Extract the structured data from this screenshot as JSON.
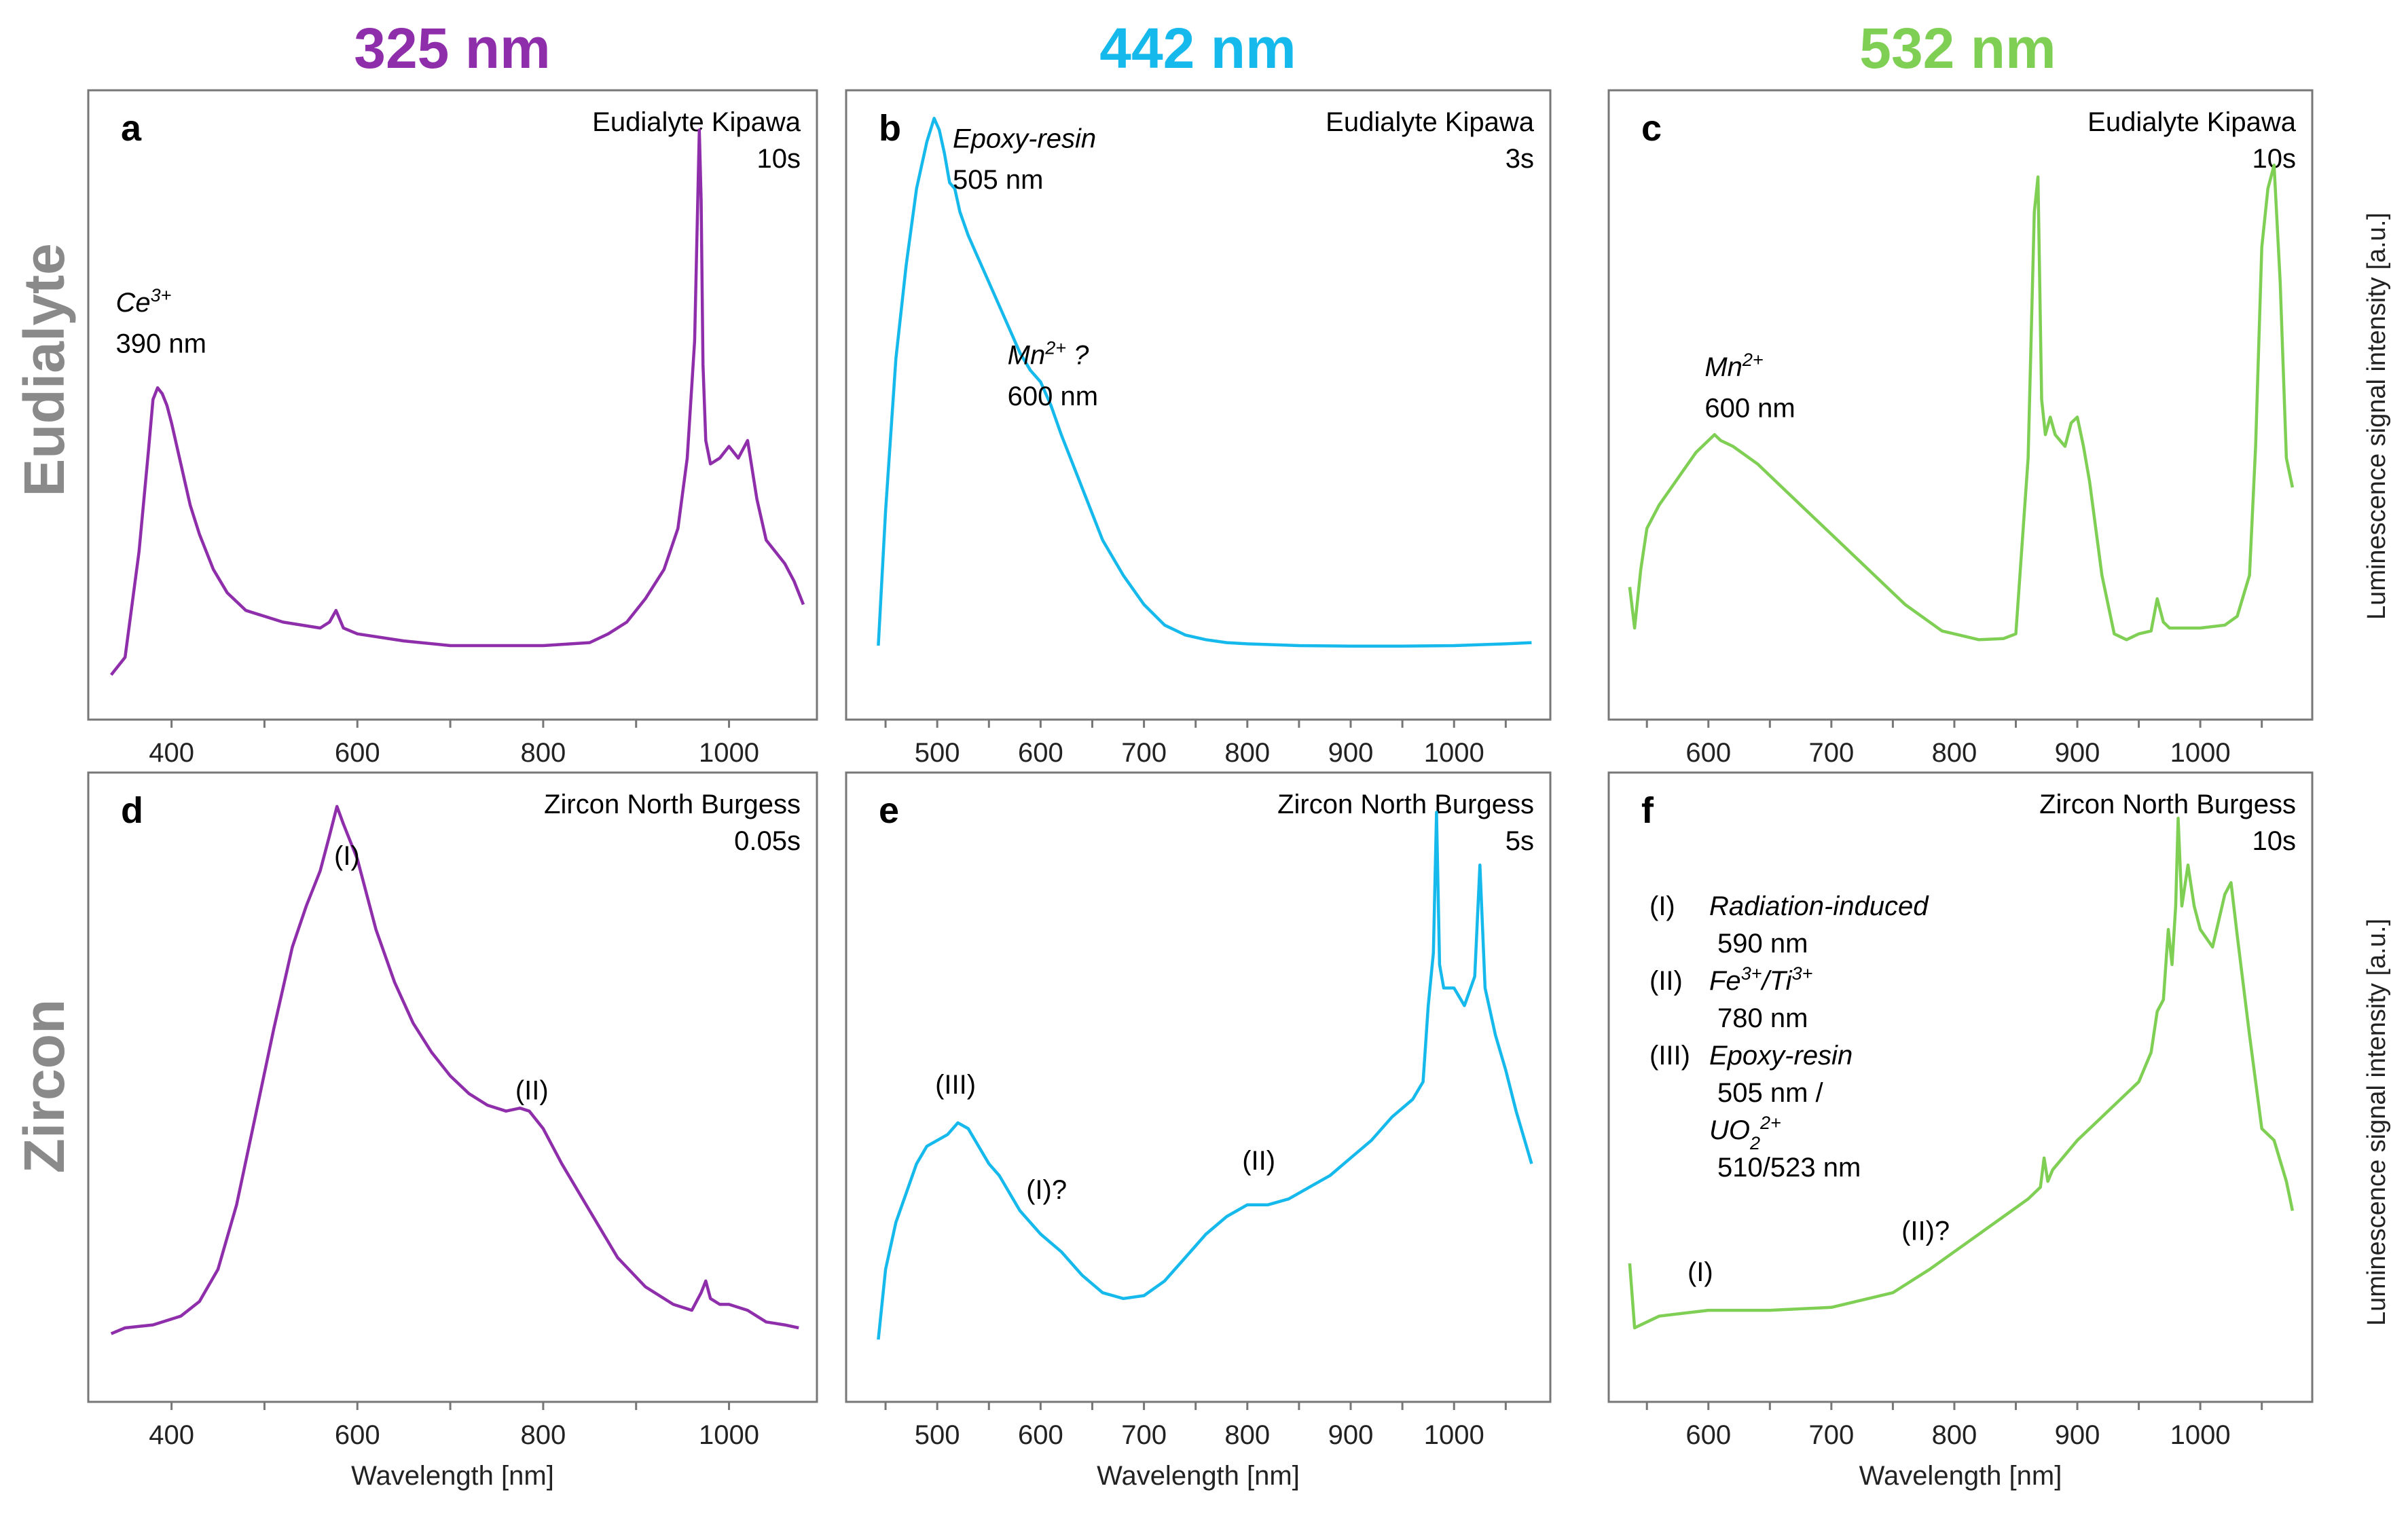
{
  "columns": [
    {
      "title": "325 nm",
      "color": "#8e2eaa"
    },
    {
      "title": "442 nm",
      "color": "#16b9eb"
    },
    {
      "title": "532 nm",
      "color": "#7fcf55"
    }
  ],
  "rows": [
    {
      "label": "Eudialyte",
      "ylabel": "Luminescence signal intensity [a.u.]"
    },
    {
      "label": "Zircon",
      "ylabel": "Luminescence signal intensity [a.u.]"
    }
  ],
  "chart_data": [
    {
      "type": "line",
      "panel": "a",
      "sample": "Eudialyte Kipawa",
      "exposure": "10s",
      "xlabel": "Wavelength [nm]",
      "xlim": [
        325,
        1080
      ],
      "ylim": [
        0,
        100
      ],
      "xticks": [
        "400",
        "600",
        "800",
        "1000"
      ],
      "annotations": [
        {
          "text": "Ce",
          "sup": "3+",
          "italic": true,
          "x": 340,
          "y": 65
        },
        {
          "text": "390 nm",
          "italic": false,
          "x": 340,
          "y": 58
        }
      ],
      "x": [
        335,
        350,
        365,
        375,
        380,
        385,
        390,
        395,
        400,
        410,
        420,
        430,
        445,
        460,
        480,
        520,
        560,
        570,
        577,
        585,
        600,
        650,
        700,
        750,
        800,
        850,
        870,
        890,
        910,
        930,
        945,
        955,
        963,
        968,
        970,
        972,
        975,
        980,
        990,
        1000,
        1010,
        1020,
        1030,
        1040,
        1050,
        1060,
        1070,
        1080
      ],
      "y": [
        3,
        6,
        24,
        41,
        50,
        52,
        51,
        49,
        46,
        39,
        32,
        27,
        21,
        17,
        14,
        12,
        11,
        12,
        14,
        11,
        10,
        8.8,
        8,
        8,
        8,
        8.5,
        10,
        12,
        16,
        21,
        28,
        40,
        60,
        96,
        84,
        56,
        43,
        39,
        40,
        42,
        40,
        43,
        33,
        26,
        24,
        22,
        19,
        15
      ]
    },
    {
      "type": "line",
      "panel": "b",
      "sample": "Eudialyte Kipawa",
      "exposure": "3s",
      "xlabel": "Wavelength [nm]",
      "xlim": [
        425,
        1080
      ],
      "ylim": [
        0,
        100
      ],
      "xticks": [
        "500",
        "600",
        "700",
        "800",
        "900",
        "1000"
      ],
      "annotations": [
        {
          "text": "Epoxy-resin",
          "italic": true,
          "x": 515,
          "y": 93
        },
        {
          "text": "505 nm",
          "italic": false,
          "x": 515,
          "y": 86
        },
        {
          "text": "Mn",
          "sup": "2+",
          "suffix": " ?",
          "italic": true,
          "x": 568,
          "y": 56
        },
        {
          "text": "600 nm",
          "italic": false,
          "x": 568,
          "y": 49
        }
      ],
      "x": [
        443,
        450,
        460,
        470,
        480,
        490,
        497,
        502,
        507,
        512,
        517,
        522,
        530,
        540,
        550,
        560,
        570,
        580,
        590,
        600,
        610,
        620,
        640,
        660,
        680,
        700,
        720,
        740,
        760,
        780,
        800,
        850,
        900,
        950,
        1000,
        1050,
        1075
      ],
      "y": [
        8,
        31,
        57,
        73,
        86,
        94,
        98,
        96,
        92,
        87,
        86,
        82,
        78,
        74,
        70,
        66,
        62,
        58,
        55,
        53,
        49,
        44,
        35,
        26,
        20,
        15,
        11.5,
        9.8,
        9,
        8.5,
        8.3,
        8,
        7.9,
        7.9,
        8,
        8.3,
        8.5
      ]
    },
    {
      "type": "line",
      "panel": "c",
      "sample": "Eudialyte Kipawa",
      "exposure": "10s",
      "xlabel": "Wavelength [nm]",
      "xlim": [
        530,
        1080
      ],
      "ylim": [
        0,
        100
      ],
      "xticks": [
        "600",
        "700",
        "800",
        "900",
        "1000"
      ],
      "annotations": [
        {
          "text": "Mn",
          "sup": "2+",
          "italic": true,
          "x": 597,
          "y": 54
        },
        {
          "text": "600 nm",
          "italic": false,
          "x": 597,
          "y": 47
        }
      ],
      "x": [
        536,
        540,
        545,
        550,
        560,
        570,
        580,
        590,
        600,
        605,
        610,
        620,
        640,
        660,
        680,
        700,
        720,
        740,
        760,
        780,
        790,
        800,
        820,
        840,
        850,
        860,
        865,
        868,
        871,
        874,
        878,
        882,
        890,
        895,
        900,
        905,
        910,
        920,
        930,
        940,
        950,
        960,
        965,
        970,
        975,
        980,
        1000,
        1020,
        1030,
        1040,
        1045,
        1050,
        1055,
        1060,
        1065,
        1070,
        1075
      ],
      "y": [
        18,
        11,
        21,
        28,
        32,
        35,
        38,
        41,
        43,
        44,
        43,
        42,
        39,
        35,
        31,
        27,
        23,
        19,
        15,
        12,
        10.5,
        10,
        9,
        9.2,
        10,
        40,
        82,
        88,
        50,
        44,
        47,
        44,
        42,
        46,
        47,
        42,
        36,
        20,
        10,
        9,
        10,
        10.5,
        16,
        12,
        11,
        11,
        11,
        11.5,
        13,
        20,
        42,
        76,
        86,
        90,
        70,
        40,
        35
      ]
    },
    {
      "type": "line",
      "panel": "d",
      "sample": "Zircon North Burgess",
      "exposure": "0.05s",
      "xlabel": "Wavelength [nm]",
      "xlim": [
        325,
        1080
      ],
      "ylim": [
        0,
        100
      ],
      "xticks": [
        "400",
        "600",
        "800",
        "1000"
      ],
      "annotations": [
        {
          "text": "(I)",
          "italic": false,
          "x": 575,
          "y": 87
        },
        {
          "text": "(II)",
          "italic": false,
          "x": 770,
          "y": 47
        }
      ],
      "x": [
        335,
        350,
        380,
        410,
        430,
        450,
        470,
        490,
        510,
        530,
        545,
        560,
        570,
        578,
        585,
        600,
        620,
        640,
        660,
        680,
        700,
        720,
        740,
        760,
        775,
        785,
        800,
        820,
        850,
        880,
        910,
        940,
        960,
        970,
        975,
        980,
        990,
        1000,
        1020,
        1040,
        1060,
        1075
      ],
      "y": [
        7,
        8,
        8.5,
        10,
        12.5,
        18,
        29,
        44,
        59,
        73,
        80,
        86,
        92,
        97,
        94,
        88,
        76,
        67,
        60,
        55,
        51,
        48,
        46,
        45,
        45.5,
        45,
        42,
        36,
        28,
        20,
        15,
        12,
        11,
        14,
        16,
        13,
        12,
        12,
        11,
        9,
        8.5,
        8
      ]
    },
    {
      "type": "line",
      "panel": "e",
      "sample": "Zircon North Burgess",
      "exposure": "5s",
      "xlabel": "Wavelength [nm]",
      "xlim": [
        425,
        1080
      ],
      "ylim": [
        0,
        100
      ],
      "xticks": [
        "500",
        "600",
        "700",
        "800",
        "900",
        "1000"
      ],
      "annotations": [
        {
          "text": "(III)",
          "italic": false,
          "x": 498,
          "y": 48
        },
        {
          "text": "(I)?",
          "italic": false,
          "x": 586,
          "y": 30
        },
        {
          "text": "(II)",
          "italic": false,
          "x": 795,
          "y": 35
        }
      ],
      "x": [
        443,
        450,
        460,
        470,
        480,
        490,
        500,
        510,
        520,
        530,
        540,
        550,
        560,
        570,
        580,
        600,
        620,
        640,
        660,
        680,
        700,
        720,
        740,
        760,
        780,
        800,
        820,
        840,
        860,
        880,
        900,
        920,
        940,
        960,
        970,
        975,
        980,
        983,
        986,
        990,
        1000,
        1010,
        1020,
        1025,
        1030,
        1040,
        1050,
        1060,
        1075
      ],
      "y": [
        6,
        18,
        26,
        31,
        36,
        39,
        40,
        41,
        43,
        42,
        39,
        36,
        34,
        31,
        28,
        24,
        21,
        17,
        14,
        13,
        13.5,
        16,
        20,
        24,
        27,
        29,
        29,
        30,
        32,
        34,
        37,
        40,
        44,
        47,
        50,
        63,
        72,
        96,
        70,
        66,
        66,
        63,
        68,
        87,
        66,
        58,
        52,
        45,
        36
      ]
    },
    {
      "type": "line",
      "panel": "f",
      "sample": "Zircon North Burgess",
      "exposure": "10s",
      "xlabel": "Wavelength [nm]",
      "xlim": [
        530,
        1080
      ],
      "ylim": [
        0,
        100
      ],
      "xticks": [
        "600",
        "700",
        "800",
        "900",
        "1000"
      ],
      "annotations": [
        {
          "text": "(I)",
          "italic": false,
          "x": 583,
          "y": 16
        },
        {
          "text": "(II)?",
          "italic": false,
          "x": 757,
          "y": 23
        }
      ],
      "legend_lines": [
        {
          "label": "(I)",
          "text": "Radiation-induced",
          "italic": true
        },
        {
          "label": "",
          "text": "590 nm",
          "italic": false
        },
        {
          "label": "(II)",
          "text": "Fe",
          "sup": "3+",
          "mid": "/Ti",
          "sup2": "3+",
          "italic": true
        },
        {
          "label": "",
          "text": "780 nm",
          "italic": false
        },
        {
          "label": "(III)",
          "text": "Epoxy-resin",
          "italic": true
        },
        {
          "label": "",
          "text": "505 nm /",
          "italic": false
        },
        {
          "label": "",
          "text": "UO",
          "sub": "2",
          "sup": "2+",
          "italic": true
        },
        {
          "label": "",
          "text": "510/523 nm",
          "italic": false
        }
      ],
      "x": [
        536,
        540,
        550,
        560,
        580,
        600,
        650,
        700,
        750,
        780,
        800,
        820,
        840,
        860,
        870,
        873,
        876,
        880,
        900,
        920,
        940,
        950,
        960,
        965,
        970,
        974,
        977,
        980,
        982,
        985,
        990,
        995,
        1000,
        1010,
        1020,
        1025,
        1030,
        1040,
        1050,
        1060,
        1070,
        1075
      ],
      "y": [
        19,
        8,
        9,
        10,
        10.5,
        11,
        11,
        11.5,
        14,
        18,
        21,
        24,
        27,
        30,
        32,
        37,
        33,
        35,
        40,
        44,
        48,
        50,
        55,
        62,
        64,
        76,
        70,
        80,
        95,
        80,
        87,
        80,
        76,
        73,
        82,
        84,
        75,
        58,
        42,
        40,
        33,
        28
      ]
    }
  ]
}
